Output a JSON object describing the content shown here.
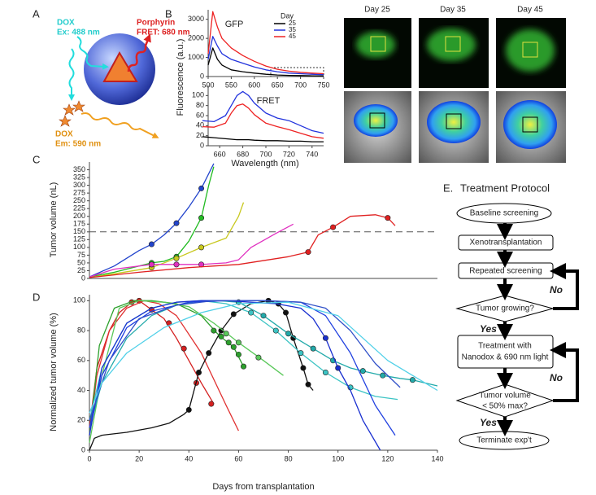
{
  "diagram": {
    "panel_label": "A",
    "dox_ex": [
      "DOX",
      "Ex: 488 nm"
    ],
    "porphyrin": [
      "Porphyrin",
      "FRET: 680 nm"
    ],
    "dox_em": [
      "DOX",
      "Em: 590 nm"
    ]
  },
  "images": {
    "titles": [
      "Day 25",
      "Day 35",
      "Day 45"
    ]
  },
  "chart_data": [
    {
      "type": "line",
      "panel_label": "B",
      "title": "GFP",
      "y_label": "Fluorescence (a.u.)",
      "legend_title": "Day",
      "x": [
        500,
        510,
        520,
        530,
        550,
        575,
        600,
        625,
        650,
        675,
        700,
        725,
        750
      ],
      "xlim": [
        500,
        750
      ],
      "xticks": [
        500,
        550,
        600,
        650,
        700,
        750
      ],
      "ylim": [
        0,
        3500
      ],
      "yticks": [
        0,
        1000,
        2000,
        3000
      ],
      "series": [
        {
          "name": "25",
          "color": "#000000",
          "values": [
            600,
            1500,
            900,
            600,
            350,
            250,
            180,
            120,
            80,
            60,
            50,
            40,
            30
          ]
        },
        {
          "name": "35",
          "color": "#2233dd",
          "values": [
            900,
            2100,
            1600,
            1200,
            900,
            700,
            500,
            350,
            250,
            180,
            150,
            120,
            100
          ]
        },
        {
          "name": "45",
          "color": "#ee2222",
          "values": [
            1200,
            3400,
            2600,
            2000,
            1500,
            1100,
            800,
            550,
            380,
            280,
            220,
            180,
            150
          ]
        }
      ]
    },
    {
      "type": "line",
      "title": "FRET",
      "x_label": "Wavelength (nm)",
      "x": [
        645,
        655,
        665,
        670,
        675,
        680,
        685,
        690,
        700,
        710,
        720,
        730,
        740,
        750
      ],
      "xlim": [
        650,
        750
      ],
      "xticks": [
        660,
        680,
        700,
        720,
        740
      ],
      "ylim": [
        0,
        120
      ],
      "yticks": [
        0,
        20,
        40,
        60,
        80,
        100
      ],
      "series": [
        {
          "color": "#000000",
          "values": [
            18,
            16,
            14,
            13,
            12,
            12,
            12,
            11,
            10,
            10,
            9,
            9,
            8,
            8
          ]
        },
        {
          "color": "#2233dd",
          "values": [
            50,
            48,
            60,
            80,
            100,
            108,
            100,
            85,
            65,
            55,
            50,
            40,
            30,
            25
          ]
        },
        {
          "color": "#ee2222",
          "values": [
            38,
            37,
            45,
            65,
            80,
            83,
            75,
            62,
            45,
            38,
            32,
            25,
            18,
            15
          ]
        }
      ]
    },
    {
      "type": "line",
      "panel_label": "C",
      "y_label": "Tumor volume (nL)",
      "xlim": [
        0,
        140
      ],
      "ylim": [
        0,
        375
      ],
      "yticks": [
        0,
        25,
        50,
        75,
        100,
        125,
        150,
        175,
        200,
        225,
        250,
        275,
        300,
        325,
        350
      ],
      "reference_line": 150,
      "series": [
        {
          "color": "#2244cc",
          "x": [
            0,
            10,
            20,
            25,
            30,
            35,
            40,
            45,
            50
          ],
          "values": [
            5,
            40,
            90,
            110,
            140,
            178,
            230,
            290,
            370
          ],
          "marker_x": [
            25,
            35,
            45
          ],
          "marker_values": [
            110,
            178,
            290
          ]
        },
        {
          "color": "#22bb22",
          "x": [
            0,
            10,
            20,
            25,
            30,
            35,
            40,
            45,
            48,
            50
          ],
          "values": [
            5,
            20,
            40,
            50,
            55,
            70,
            120,
            195,
            300,
            360
          ],
          "marker_x": [
            25,
            35,
            45
          ],
          "marker_values": [
            50,
            70,
            195
          ]
        },
        {
          "color": "#c8c81e",
          "x": [
            0,
            10,
            20,
            25,
            35,
            45,
            55,
            60,
            62
          ],
          "values": [
            3,
            15,
            28,
            35,
            65,
            100,
            130,
            200,
            245
          ],
          "marker_x": [
            25,
            35,
            45
          ],
          "marker_values": [
            35,
            65,
            100
          ]
        },
        {
          "color": "#e030c0",
          "x": [
            0,
            10,
            25,
            35,
            45,
            55,
            60,
            65,
            75,
            82
          ],
          "values": [
            5,
            30,
            45,
            45,
            45,
            50,
            60,
            100,
            145,
            175
          ],
          "marker_x": [
            25,
            35,
            45
          ],
          "marker_values": [
            45,
            45,
            45
          ]
        },
        {
          "color": "#e02020",
          "x": [
            0,
            20,
            40,
            60,
            80,
            88,
            92,
            98,
            105,
            115,
            120,
            123
          ],
          "values": [
            3,
            20,
            35,
            45,
            70,
            85,
            140,
            165,
            200,
            205,
            195,
            170
          ],
          "marker_x": [
            88,
            98,
            120
          ],
          "marker_values": [
            85,
            165,
            195
          ]
        }
      ]
    },
    {
      "type": "line",
      "panel_label": "D",
      "y_label": "Normalized tumor volume (%)",
      "x_label": "Days from transplantation",
      "xlim": [
        0,
        140
      ],
      "xticks": [
        0,
        20,
        40,
        60,
        80,
        100,
        120,
        140
      ],
      "ylim": [
        0,
        104
      ],
      "yticks": [
        0,
        20,
        40,
        60,
        80,
        100
      ],
      "series": [
        {
          "color": "#d42020",
          "x": [
            0,
            3,
            8,
            12,
            17,
            20,
            25,
            30,
            35,
            40,
            45,
            50
          ],
          "values": [
            15,
            55,
            80,
            92,
            99,
            100,
            94,
            88,
            75,
            60,
            45,
            31
          ],
          "marker_x": [
            17,
            20,
            25,
            32,
            38,
            43,
            49
          ],
          "marker_values": [
            99,
            100,
            94,
            85,
            68,
            45,
            31
          ]
        },
        {
          "color": "#e03030",
          "x": [
            0,
            3,
            8,
            15,
            22,
            28,
            35,
            45,
            55,
            60
          ],
          "values": [
            10,
            50,
            80,
            95,
            100,
            98,
            90,
            65,
            30,
            13
          ]
        },
        {
          "color": "#111111",
          "x": [
            0,
            2,
            5,
            15,
            25,
            32,
            38,
            40,
            44,
            48,
            53,
            58,
            65,
            72,
            76,
            79,
            82,
            86,
            88,
            90
          ],
          "values": [
            0,
            8,
            10,
            12,
            15,
            18,
            24,
            27,
            52,
            65,
            80,
            91,
            98,
            100,
            98,
            92,
            75,
            55,
            44,
            40
          ],
          "marker_x": [
            40,
            44,
            48,
            53,
            58,
            72,
            76,
            79,
            82,
            86,
            88
          ],
          "marker_values": [
            27,
            52,
            65,
            80,
            91,
            100,
            98,
            92,
            75,
            55,
            44
          ]
        },
        {
          "color": "#2ca02c",
          "x": [
            0,
            4,
            10,
            18,
            25,
            35,
            45,
            52,
            58,
            62
          ],
          "values": [
            10,
            70,
            95,
            100,
            100,
            98,
            90,
            77,
            69,
            56
          ],
          "marker_x": [
            50,
            53,
            56,
            58,
            60,
            62
          ],
          "marker_values": [
            80,
            76,
            72,
            69,
            64,
            56
          ]
        },
        {
          "color": "#5ac85a",
          "x": [
            0,
            5,
            12,
            20,
            30,
            40,
            50,
            60,
            70,
            78
          ],
          "values": [
            5,
            50,
            95,
            100,
            99,
            96,
            85,
            72,
            60,
            50
          ],
          "marker_x": [
            55,
            60,
            68
          ],
          "marker_values": [
            78,
            72,
            62
          ]
        },
        {
          "color": "#22aaaa",
          "x": [
            0,
            5,
            15,
            25,
            35,
            45,
            52,
            60,
            70,
            80,
            90,
            98,
            105,
            110,
            118,
            125,
            130,
            135,
            140
          ],
          "values": [
            15,
            45,
            75,
            90,
            97,
            100,
            100,
            99,
            90,
            78,
            68,
            60,
            55,
            53,
            50,
            48,
            47,
            45,
            43
          ],
          "marker_x": [
            60,
            70,
            80,
            90,
            98,
            110,
            118,
            130
          ],
          "marker_values": [
            99,
            90,
            78,
            68,
            60,
            53,
            50,
            47
          ]
        },
        {
          "color": "#3cc4c4",
          "x": [
            0,
            5,
            15,
            25,
            35,
            45,
            55,
            65,
            75,
            85,
            95,
            105,
            115,
            124
          ],
          "values": [
            20,
            55,
            85,
            95,
            99,
            100,
            98,
            92,
            80,
            65,
            52,
            42,
            36,
            34
          ],
          "marker_x": [
            65,
            75,
            85,
            95,
            105
          ],
          "marker_values": [
            92,
            80,
            65,
            52,
            42
          ]
        },
        {
          "color": "#1a30d0",
          "x": [
            0,
            5,
            15,
            25,
            35,
            45,
            55,
            65,
            75,
            85,
            90,
            95,
            100,
            105,
            110,
            117
          ],
          "values": [
            10,
            55,
            85,
            95,
            99,
            100,
            100,
            99,
            98,
            95,
            88,
            75,
            55,
            40,
            20,
            0
          ],
          "marker_x": [
            95,
            100
          ],
          "marker_values": [
            75,
            55
          ]
        },
        {
          "color": "#2040e0",
          "x": [
            0,
            5,
            15,
            25,
            40,
            55,
            70,
            85,
            95,
            105,
            115,
            123
          ],
          "values": [
            15,
            50,
            82,
            93,
            99,
            100,
            100,
            99,
            90,
            65,
            30,
            10
          ]
        },
        {
          "color": "#3050c8",
          "x": [
            0,
            8,
            20,
            35,
            50,
            70,
            85,
            95,
            105,
            115,
            125
          ],
          "values": [
            20,
            60,
            88,
            97,
            100,
            100,
            99,
            95,
            80,
            58,
            42
          ]
        },
        {
          "color": "#50d0e8",
          "x": [
            0,
            5,
            15,
            30,
            45,
            60,
            80,
            100,
            120,
            140
          ],
          "values": [
            25,
            45,
            65,
            82,
            92,
            98,
            99,
            90,
            60,
            40
          ]
        }
      ]
    }
  ],
  "flowchart": {
    "panel_label": "E.",
    "title": "Treatment Protocol",
    "nodes": [
      "Baseline screening",
      "Xenotransplantation",
      "Repeated screening",
      "Tumor growing?",
      [
        "Treatment with",
        "Nanodox & 690 nm light"
      ],
      [
        "Tumor volume",
        "< 50% max?"
      ],
      "Terminate exp't"
    ],
    "edge_labels": [
      "No",
      "Yes",
      "No",
      "Yes"
    ]
  }
}
